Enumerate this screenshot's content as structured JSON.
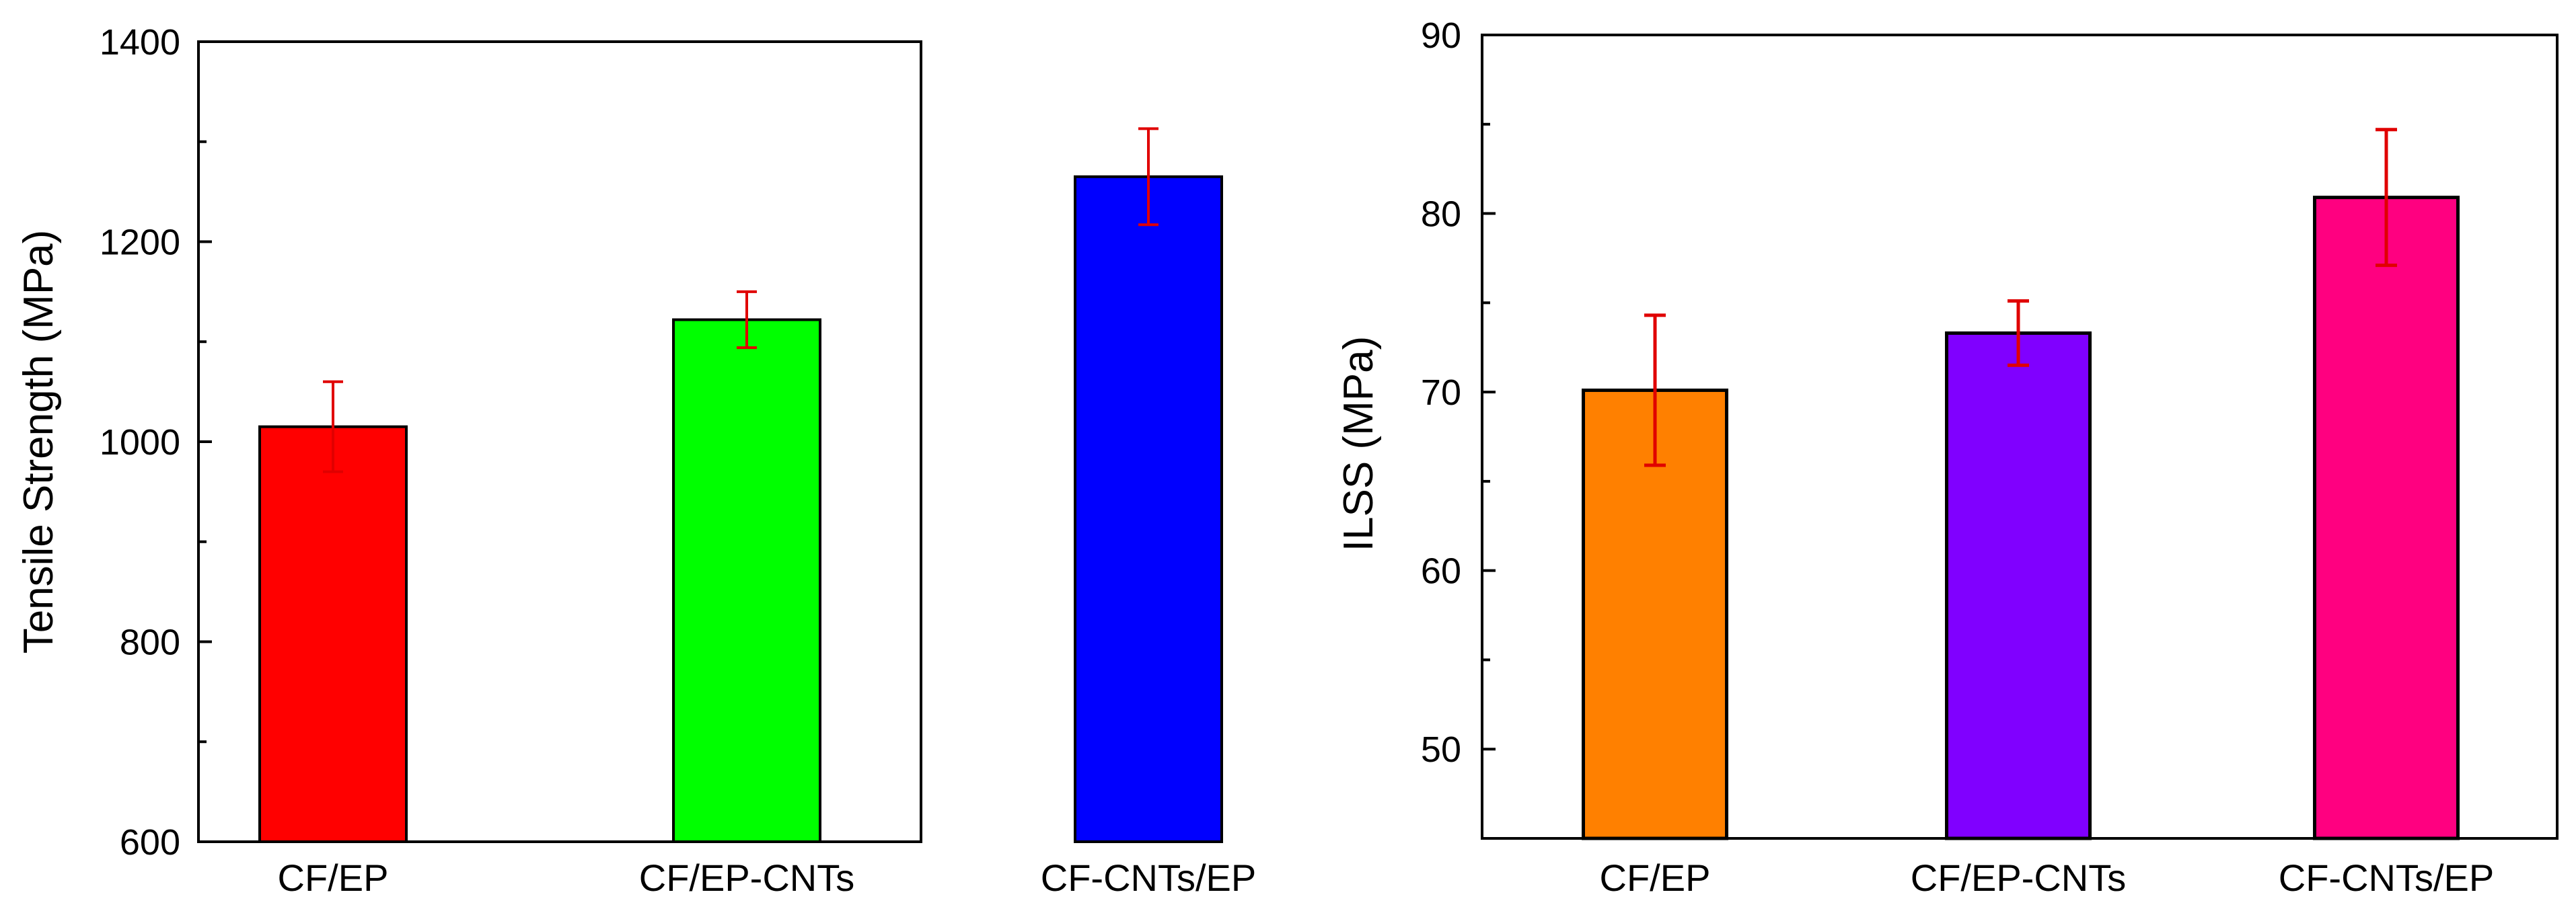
{
  "chart_data": [
    {
      "type": "bar",
      "title": "",
      "xlabel": "",
      "ylabel": "Tensile Strength (MPa)",
      "categories": [
        "CF/EP",
        "CF/EP-CNTs",
        "CF-CNTs/EP"
      ],
      "values": [
        1015,
        1122,
        1265
      ],
      "errors": [
        45,
        28,
        48
      ],
      "colors": [
        "#ff0000",
        "#00ff00",
        "#0000ff"
      ],
      "error_color": "#e00000",
      "ylim": [
        600,
        1400
      ],
      "yticks": [
        600,
        800,
        1000,
        1200,
        1400
      ],
      "yminor_step": 100,
      "grid": false,
      "legend": "none"
    },
    {
      "type": "bar",
      "title": "",
      "xlabel": "",
      "ylabel": "ILSS (MPa)",
      "categories": [
        "CF/EP",
        "CF/EP-CNTs",
        "CF-CNTs/EP"
      ],
      "values": [
        70.1,
        73.3,
        80.9
      ],
      "errors": [
        4.2,
        1.8,
        3.8
      ],
      "colors": [
        "#ff8000",
        "#8000ff",
        "#ff0080"
      ],
      "error_color": "#e00000",
      "ylim": [
        45,
        90
      ],
      "yticks": [
        50,
        60,
        70,
        80,
        90
      ],
      "yminor_step": 5,
      "grid": false,
      "legend": "none"
    }
  ]
}
